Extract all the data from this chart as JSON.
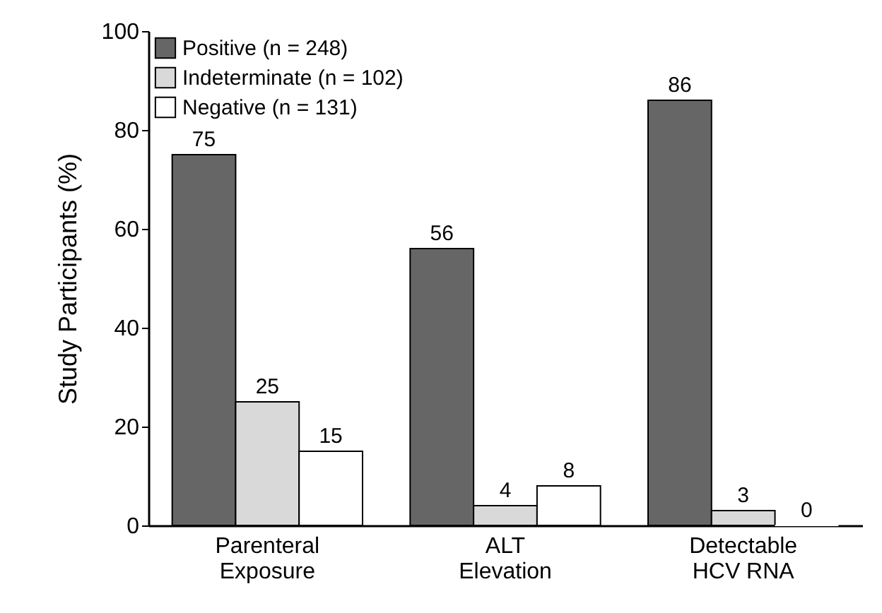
{
  "chart_data": {
    "type": "bar",
    "ylabel": "Study Participants (%)",
    "categories": [
      "Parenteral Exposure",
      "ALT Elevation",
      "Detectable HCV RNA"
    ],
    "series": [
      {
        "name": "Positive (n = 248)",
        "color": "#666666",
        "values": [
          75,
          56,
          86
        ]
      },
      {
        "name": "Indeterminate (n = 102)",
        "color": "#d9d9d9",
        "values": [
          25,
          4,
          3
        ]
      },
      {
        "name": "Negative (n = 131)",
        "color": "#ffffff",
        "values": [
          15,
          8,
          0
        ]
      }
    ],
    "ylim": [
      0,
      100
    ],
    "yticks": [
      0,
      20,
      40,
      60,
      80,
      100
    ],
    "data_labels": true,
    "legend": "top left",
    "grid": false
  }
}
